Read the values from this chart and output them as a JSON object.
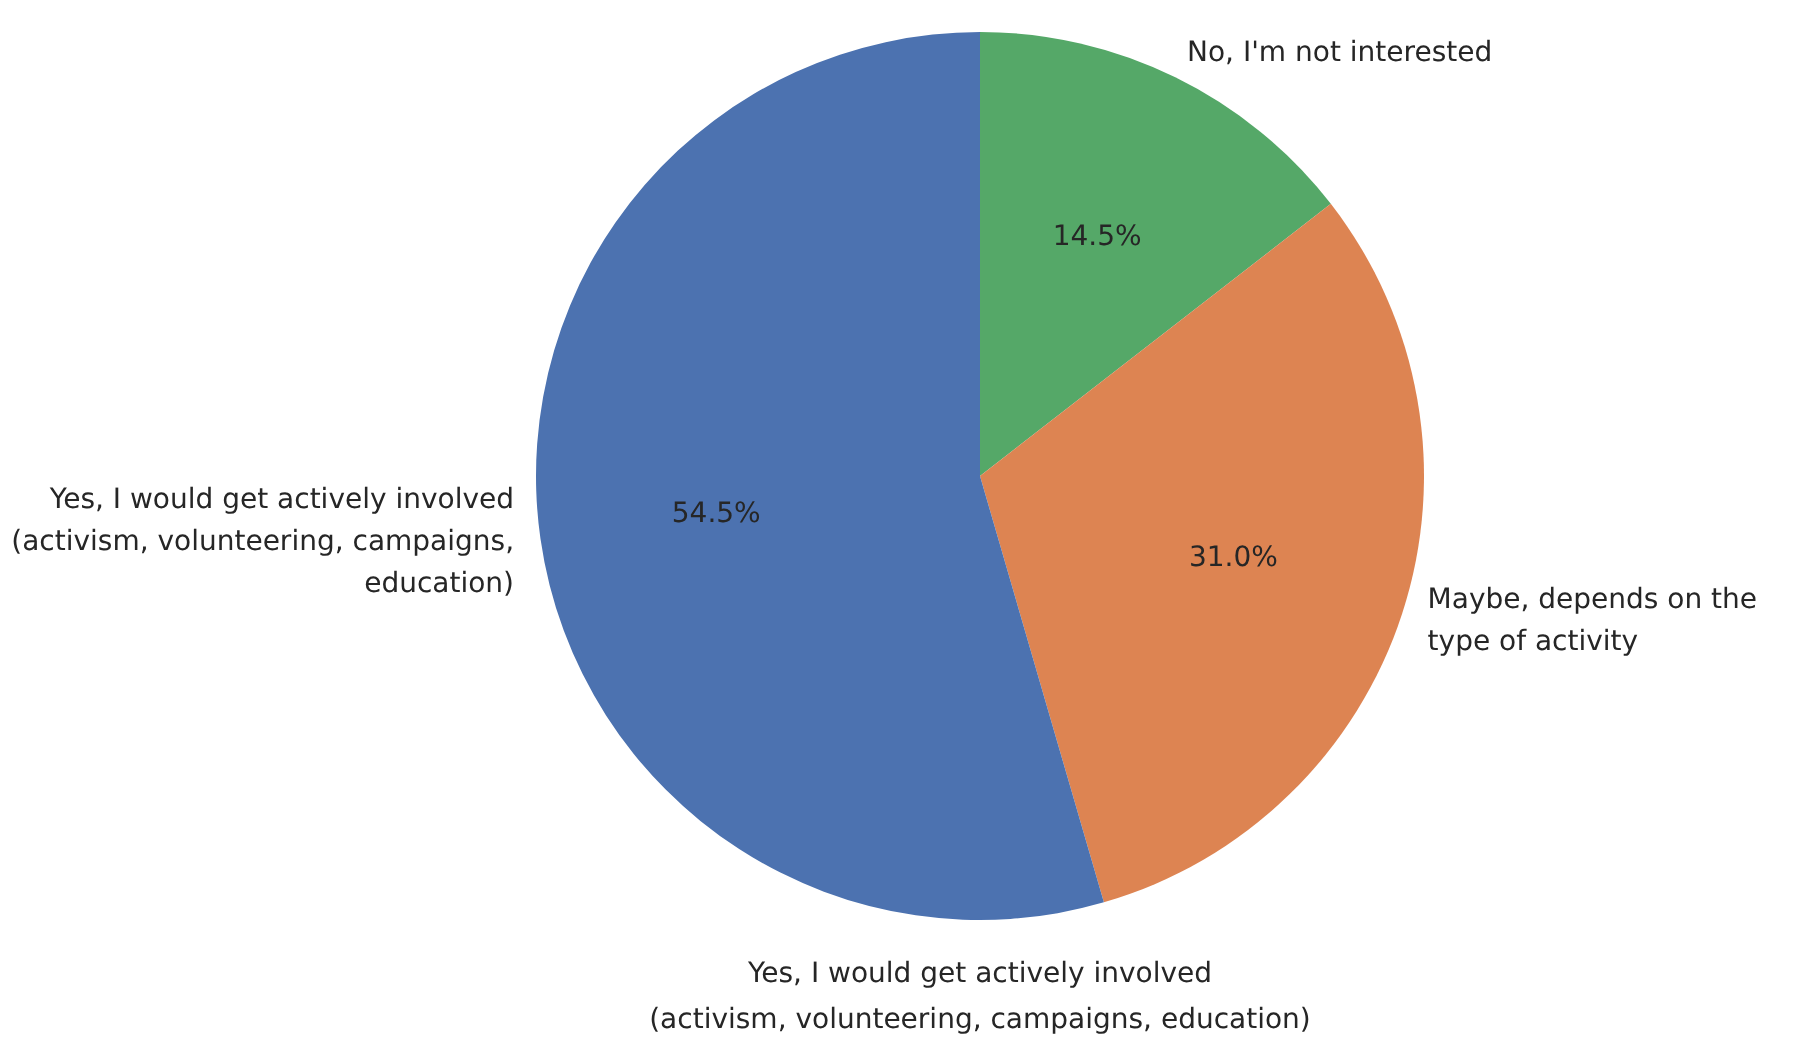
{
  "chart_data": {
    "type": "pie",
    "categories": [
      "No, I'm not interested",
      "Maybe, depends on the\ntype of activity",
      "Yes, I would get actively involved\n(activism, volunteering, campaigns,\neducation)"
    ],
    "values": [
      14.5,
      31.0,
      54.5
    ],
    "colors": [
      "#55a868",
      "#dd8452",
      "#4c72b0"
    ],
    "value_labels": [
      "14.5%",
      "31.0%",
      "54.5%"
    ],
    "annotations": [
      "Yes, I would get actively involved\n(activism, volunteering, campaigns, education)"
    ]
  }
}
